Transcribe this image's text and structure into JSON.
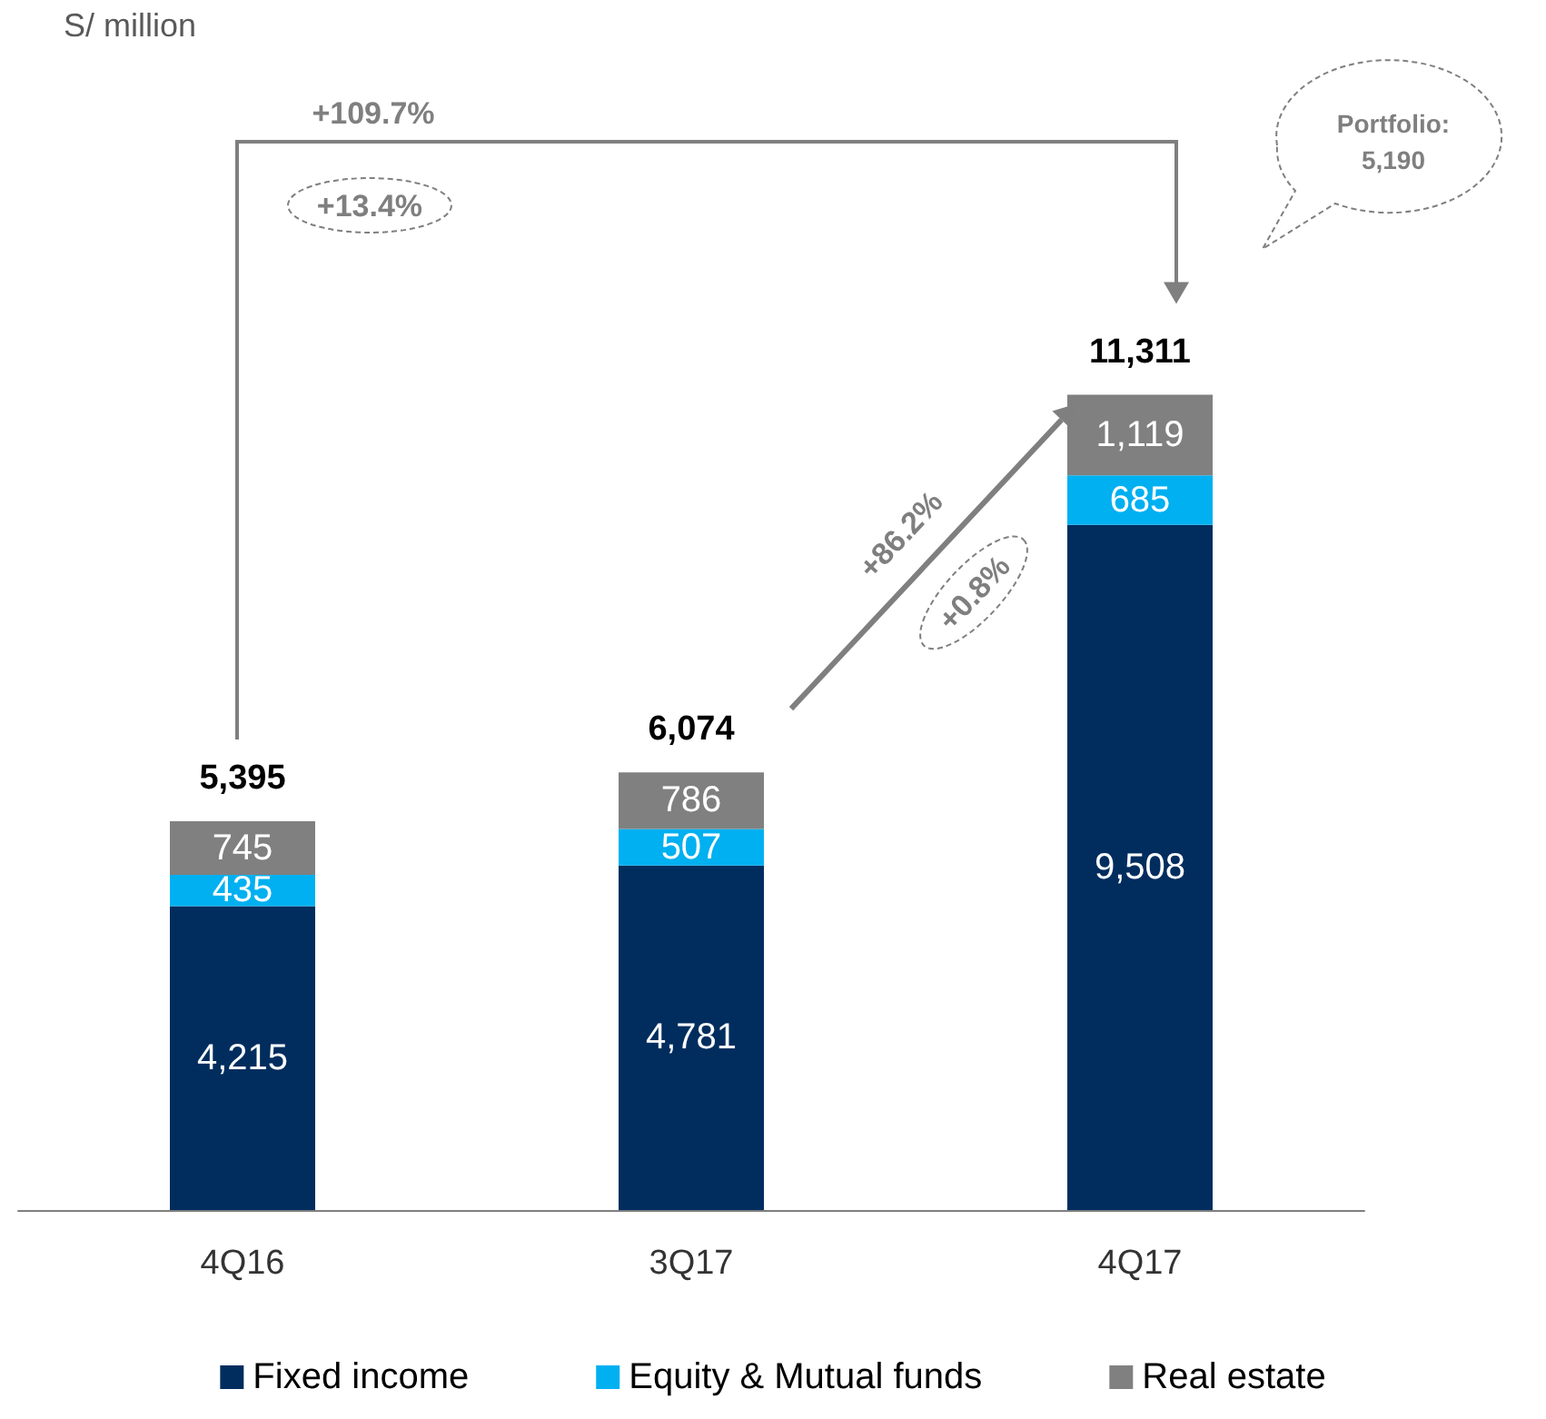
{
  "chart_data": {
    "type": "bar",
    "subtitle": "S/ million",
    "categories": [
      "4Q16",
      "3Q17",
      "4Q17"
    ],
    "stacked": true,
    "grid": false,
    "legend": "bottom",
    "series": [
      {
        "name": "Fixed income",
        "color": "#002d5e",
        "values": [
          4215,
          4781,
          9508
        ],
        "value_labels": [
          "4,215",
          "4,781",
          "9,508"
        ]
      },
      {
        "name": "Equity & Mutual funds",
        "color": "#00b0f0",
        "values": [
          435,
          507,
          685
        ],
        "value_labels": [
          "435",
          "507",
          "685"
        ]
      },
      {
        "name": "Real estate",
        "color": "#808080",
        "values": [
          745,
          786,
          1119
        ],
        "value_labels": [
          "745",
          "786",
          "1,119"
        ]
      }
    ],
    "totals": [
      "5,395",
      "6,074",
      "11,311"
    ],
    "annotations": [
      "+109.7%",
      "+13.4%",
      "+86.2%",
      "+0.8%",
      "Portfolio: 5,190"
    ]
  }
}
